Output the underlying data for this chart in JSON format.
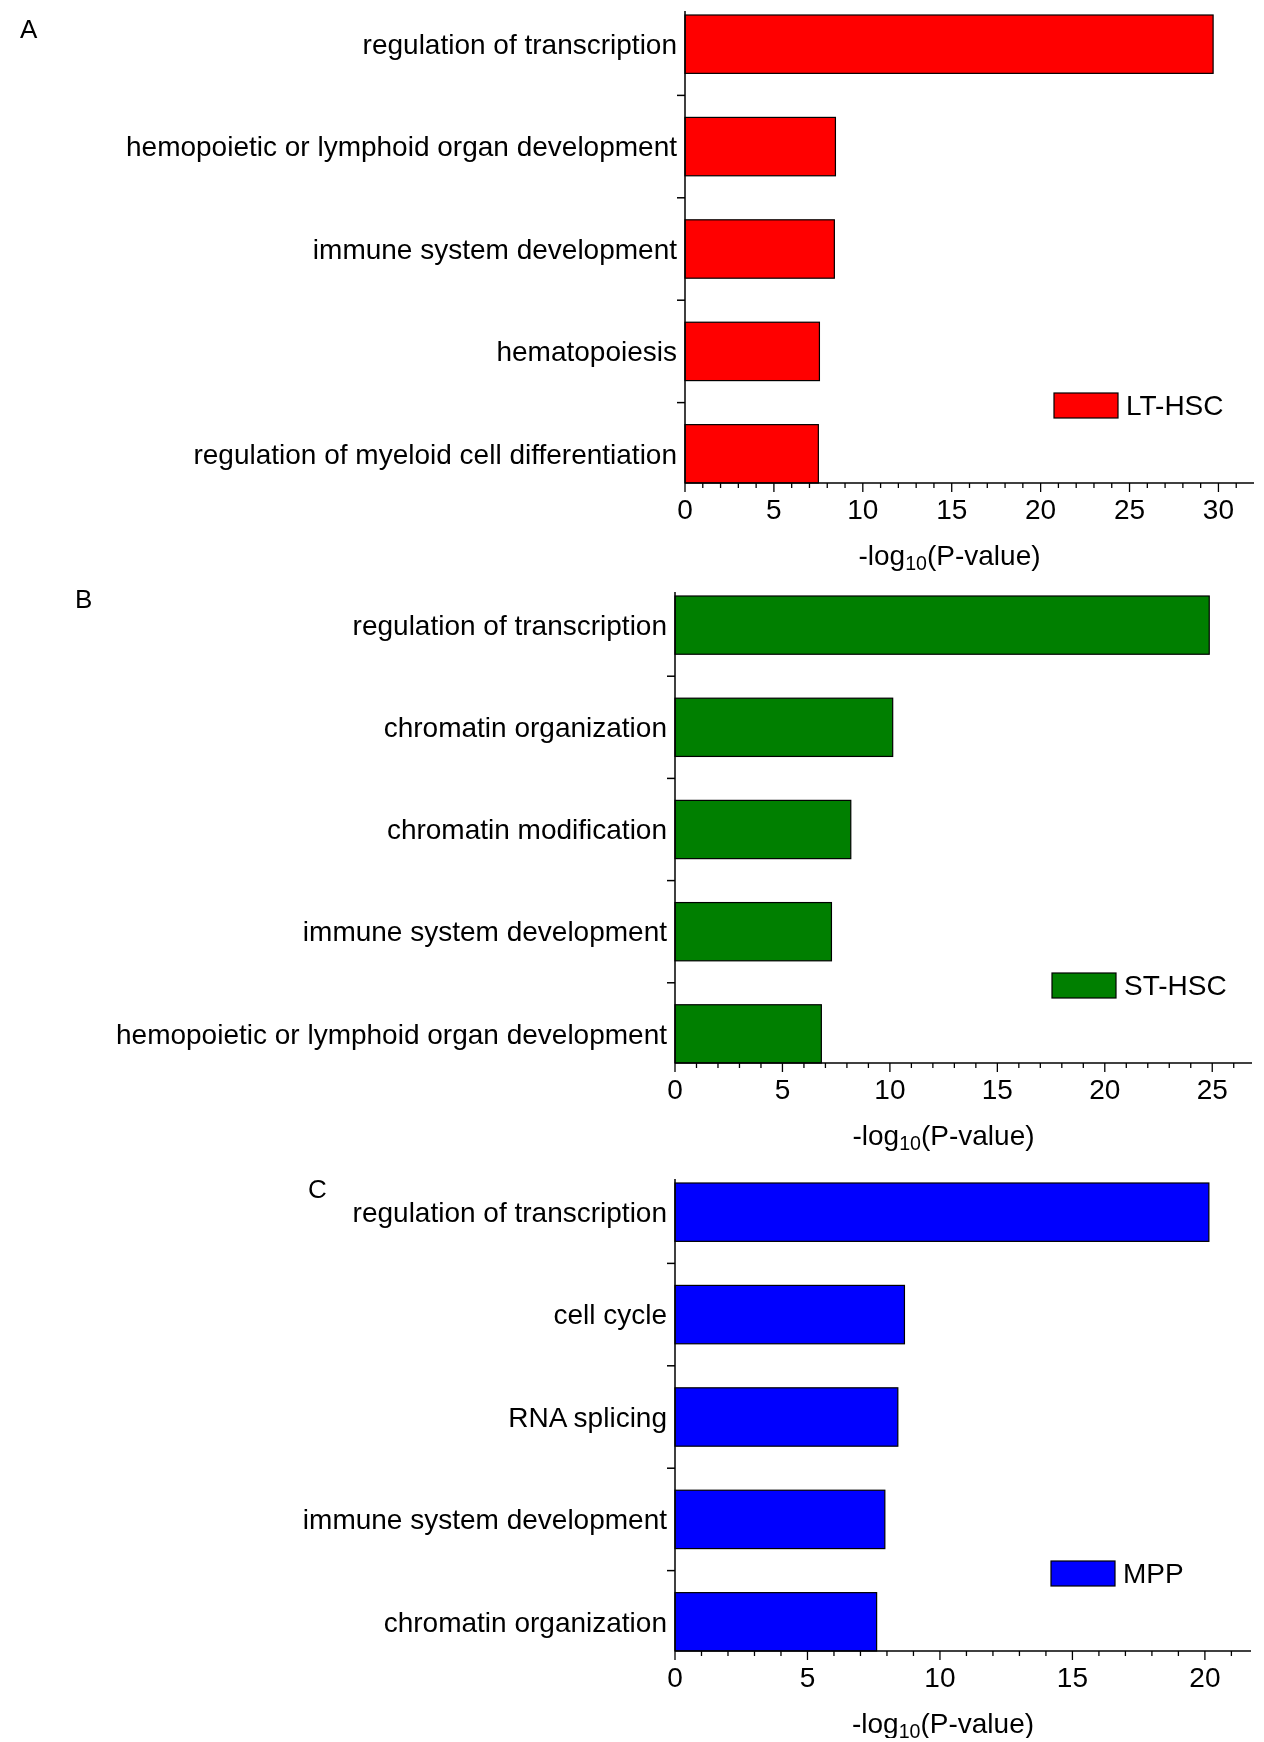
{
  "chart_data": [
    {
      "type": "bar",
      "title": "A",
      "orientation": "horizontal",
      "categories": [
        "regulation of transcription",
        "hemopoietic or lymphoid organ development",
        "immune system development",
        "hematopoiesis",
        "regulation of myeloid cell differentiation"
      ],
      "series": [
        {
          "name": "LT-HSC",
          "color": "#ff0000",
          "values": [
            29.7,
            8.46,
            8.4,
            7.56,
            7.5
          ]
        }
      ],
      "xlabel": "-log$_{10}$(P-value)",
      "xlim": [
        0,
        32
      ],
      "xticks": [
        0,
        {
          "value": 1,
          "label": null
        },
        {
          "value": 2,
          "label": null
        },
        {
          "value": 3,
          "label": null
        },
        {
          "value": 4,
          "label": null
        },
        5,
        {
          "value": 6,
          "label": null
        },
        {
          "value": 7,
          "label": null
        },
        {
          "value": 8,
          "label": null
        },
        {
          "value": 9,
          "label": null
        },
        10,
        {
          "value": 11,
          "label": null
        },
        {
          "value": 12,
          "label": null
        },
        {
          "value": 13,
          "label": null
        },
        {
          "value": 14,
          "label": null
        },
        15,
        {
          "value": 16,
          "label": null
        },
        {
          "value": 17,
          "label": null
        },
        {
          "value": 18,
          "label": null
        },
        {
          "value": 19,
          "label": null
        },
        20,
        {
          "value": 21,
          "label": null
        },
        {
          "value": 22,
          "label": null
        },
        {
          "value": 23,
          "label": null
        },
        {
          "value": 24,
          "label": null
        },
        25,
        {
          "value": 26,
          "label": null
        },
        {
          "value": 27,
          "label": null
        },
        {
          "value": 28,
          "label": null
        },
        {
          "value": 29,
          "label": null
        },
        30,
        {
          "value": 31,
          "label": null
        }
      ],
      "legend": "bottom right",
      "grid": false
    },
    {
      "type": "bar",
      "title": "B",
      "orientation": "horizontal",
      "categories": [
        "regulation of transcription",
        "chromatin organization",
        "chromatin modification",
        "immune system development",
        "hemopoietic or lymphoid organ development"
      ],
      "series": [
        {
          "name": "ST-HSC",
          "color": "#007f00",
          "values": [
            24.86,
            10.13,
            8.18,
            7.28,
            6.81
          ]
        }
      ],
      "xlabel": "-log$_{10}$(P-value)",
      "xlim": [
        0,
        26.85
      ],
      "xticks": [
        0,
        {
          "value": 1,
          "label": null
        },
        {
          "value": 2,
          "label": null
        },
        {
          "value": 3,
          "label": null
        },
        {
          "value": 4,
          "label": null
        },
        5,
        {
          "value": 6,
          "label": null
        },
        {
          "value": 7,
          "label": null
        },
        {
          "value": 8,
          "label": null
        },
        {
          "value": 9,
          "label": null
        },
        10,
        {
          "value": 11,
          "label": null
        },
        {
          "value": 12,
          "label": null
        },
        {
          "value": 13,
          "label": null
        },
        {
          "value": 14,
          "label": null
        },
        15,
        {
          "value": 16,
          "label": null
        },
        {
          "value": 17,
          "label": null
        },
        {
          "value": 18,
          "label": null
        },
        {
          "value": 19,
          "label": null
        },
        20,
        {
          "value": 21,
          "label": null
        },
        {
          "value": 22,
          "label": null
        },
        {
          "value": 23,
          "label": null
        },
        {
          "value": 24,
          "label": null
        },
        25,
        {
          "value": 26,
          "label": null
        }
      ],
      "legend": "bottom right",
      "grid": false
    },
    {
      "type": "bar",
      "title": "C",
      "orientation": "horizontal",
      "categories": [
        "regulation of transcription",
        "cell cycle",
        "RNA splicing",
        "immune system development",
        "chromatin organization"
      ],
      "series": [
        {
          "name": "MPP",
          "color": "#0000ff",
          "values": [
            20.15,
            8.66,
            8.41,
            7.92,
            7.61
          ]
        }
      ],
      "xlabel": "-log$_{10}$(P-value)",
      "xlim": [
        0,
        21.74
      ],
      "xticks": [
        0,
        {
          "value": 1,
          "label": null
        },
        {
          "value": 2,
          "label": null
        },
        {
          "value": 3,
          "label": null
        },
        {
          "value": 4,
          "label": null
        },
        5,
        {
          "value": 6,
          "label": null
        },
        {
          "value": 7,
          "label": null
        },
        {
          "value": 8,
          "label": null
        },
        {
          "value": 9,
          "label": null
        },
        10,
        {
          "value": 11,
          "label": null
        },
        {
          "value": 12,
          "label": null
        },
        {
          "value": 13,
          "label": null
        },
        {
          "value": 14,
          "label": null
        },
        15,
        {
          "value": 16,
          "label": null
        },
        {
          "value": 17,
          "label": null
        },
        {
          "value": 18,
          "label": null
        },
        {
          "value": 19,
          "label": null
        },
        20,
        {
          "value": 21,
          "label": null
        }
      ],
      "legend": "bottom right",
      "grid": false
    }
  ]
}
